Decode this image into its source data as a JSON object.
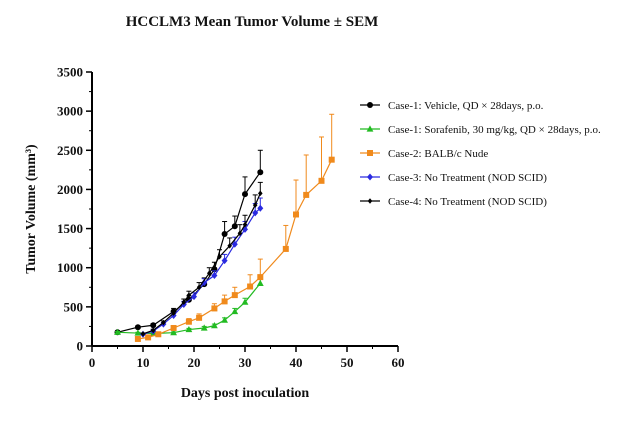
{
  "chart_data": {
    "type": "line",
    "title": "HCCLM3 Mean Tumor Volume ± SEM",
    "xlabel": "Days post inoculation",
    "ylabel": "Tumor Volume (mm³)",
    "xlim": [
      0,
      60
    ],
    "ylim": [
      0,
      3500
    ],
    "x_ticks": [
      0,
      10,
      20,
      30,
      40,
      50,
      60
    ],
    "y_ticks": [
      0,
      500,
      1000,
      1500,
      2000,
      2500,
      3000,
      3500
    ],
    "grid": false,
    "legend_position": "right",
    "series": [
      {
        "name": "Case-1: Vehicle, QD × 28days, p.o.",
        "color": "#000000",
        "marker": "circle",
        "x": [
          5,
          9,
          12,
          16,
          19,
          22,
          24,
          26,
          28,
          30,
          33
        ],
        "y": [
          175,
          240,
          265,
          440,
          590,
          790,
          980,
          1430,
          1530,
          1940,
          2220
        ],
        "err": [
          10,
          15,
          20,
          40,
          50,
          80,
          90,
          160,
          130,
          220,
          280
        ]
      },
      {
        "name": "Case-1: Sorafenib, 30 mg/kg, QD × 28days, p.o.",
        "color": "#22bb22",
        "marker": "triangle",
        "x": [
          5,
          9,
          12,
          16,
          19,
          22,
          24,
          26,
          28,
          30,
          33
        ],
        "y": [
          175,
          165,
          160,
          170,
          210,
          230,
          260,
          330,
          440,
          560,
          800
        ],
        "err": [
          10,
          10,
          10,
          10,
          15,
          20,
          20,
          30,
          40,
          50,
          80
        ]
      },
      {
        "name": "Case-2: BALB/c Nude",
        "color": "#f08a1c",
        "marker": "square",
        "x": [
          9,
          11,
          13,
          16,
          19,
          21,
          24,
          26,
          28,
          31,
          33,
          38,
          40,
          42,
          45,
          47
        ],
        "y": [
          90,
          110,
          150,
          230,
          310,
          360,
          480,
          570,
          650,
          760,
          880,
          1240,
          1680,
          1930,
          2110,
          2380
        ],
        "err": [
          10,
          10,
          20,
          30,
          40,
          50,
          60,
          80,
          100,
          150,
          230,
          300,
          440,
          510,
          560,
          580
        ]
      },
      {
        "name": "Case-3: No Treatment (NOD SCID)",
        "color": "#2a2ae0",
        "marker": "diamond",
        "x": [
          10,
          12,
          14,
          16,
          18,
          20,
          22,
          24,
          26,
          28,
          30,
          32,
          33
        ],
        "y": [
          150,
          190,
          280,
          390,
          530,
          630,
          810,
          900,
          1090,
          1300,
          1490,
          1700,
          1760
        ],
        "err": [
          10,
          15,
          20,
          30,
          40,
          50,
          50,
          60,
          80,
          90,
          100,
          120,
          130
        ]
      },
      {
        "name": "Case-4: No Treatment (NOD SCID)",
        "color": "#000000",
        "marker": "small-diamond",
        "x": [
          10,
          12,
          14,
          16,
          18,
          19,
          21,
          23,
          25,
          27,
          29,
          30,
          32,
          33
        ],
        "y": [
          155,
          200,
          300,
          420,
          560,
          650,
          750,
          930,
          1140,
          1280,
          1440,
          1550,
          1800,
          1950
        ],
        "err": [
          10,
          15,
          20,
          30,
          40,
          50,
          60,
          70,
          90,
          100,
          110,
          120,
          130,
          140
        ]
      }
    ]
  }
}
